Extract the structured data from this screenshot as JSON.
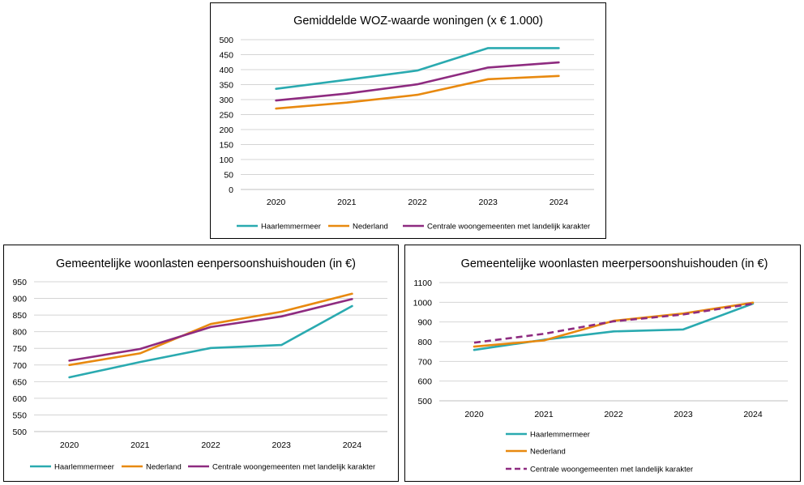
{
  "colors": {
    "haarlemmermeer": "#2AAAB0",
    "nederland": "#E8890F",
    "centrale": "#8E2B80",
    "grid": "#d4d4d4",
    "axis": "#bfbfbf"
  },
  "chart_data": [
    {
      "type": "line",
      "title": "Gemiddelde WOZ-waarde woningen (x € 1.000)",
      "categories": [
        "2020",
        "2021",
        "2022",
        "2023",
        "2024"
      ],
      "ylim": [
        0,
        500
      ],
      "yticks": [
        "0",
        "50",
        "100",
        "150",
        "200",
        "250",
        "300",
        "350",
        "400",
        "450",
        "500"
      ],
      "grid": true,
      "legend": "bottom",
      "series": [
        {
          "name": "Haarlemmermeer",
          "color_key": "haarlemmermeer",
          "dashed": false,
          "values": [
            336,
            366,
            397,
            472,
            472
          ]
        },
        {
          "name": "Nederland",
          "color_key": "nederland",
          "dashed": false,
          "values": [
            270,
            290,
            316,
            368,
            379
          ]
        },
        {
          "name": "Centrale woongemeenten met landelijk karakter",
          "color_key": "centrale",
          "dashed": false,
          "values": [
            297,
            320,
            351,
            407,
            424
          ]
        }
      ]
    },
    {
      "type": "line",
      "title": "Gemeentelijke woonlasten eenpersoonshuishouden (in €)",
      "categories": [
        "2020",
        "2021",
        "2022",
        "2023",
        "2024"
      ],
      "ylim": [
        500,
        950
      ],
      "yticks": [
        "500",
        "550",
        "600",
        "650",
        "700",
        "750",
        "800",
        "850",
        "900",
        "950"
      ],
      "grid": true,
      "legend": "bottom",
      "series": [
        {
          "name": "Haarlemmermeer",
          "color_key": "haarlemmermeer",
          "dashed": false,
          "values": [
            663,
            709,
            751,
            760,
            877
          ]
        },
        {
          "name": "Nederland",
          "color_key": "nederland",
          "dashed": false,
          "values": [
            700,
            735,
            823,
            860,
            914
          ]
        },
        {
          "name": "Centrale woongemeenten met landelijk karakter",
          "color_key": "centrale",
          "dashed": false,
          "values": [
            713,
            748,
            814,
            846,
            898
          ]
        }
      ]
    },
    {
      "type": "line",
      "title": "Gemeentelijke woonlasten meerpersoonshuishouden (in €)",
      "categories": [
        "2020",
        "2021",
        "2022",
        "2023",
        "2024"
      ],
      "ylim": [
        500,
        1100
      ],
      "yticks": [
        "500",
        "600",
        "700",
        "800",
        "900",
        "1000",
        "1100"
      ],
      "grid": true,
      "legend": "bottom",
      "series": [
        {
          "name": "Haarlemmermeer",
          "color_key": "haarlemmermeer",
          "dashed": false,
          "values": [
            758,
            810,
            852,
            862,
            993
          ]
        },
        {
          "name": "Nederland",
          "color_key": "nederland",
          "dashed": false,
          "values": [
            775,
            806,
            906,
            943,
            998
          ]
        },
        {
          "name": "Centrale woongemeenten met landelijk karakter",
          "color_key": "centrale",
          "dashed": true,
          "values": [
            795,
            840,
            903,
            938,
            993
          ]
        }
      ]
    }
  ]
}
